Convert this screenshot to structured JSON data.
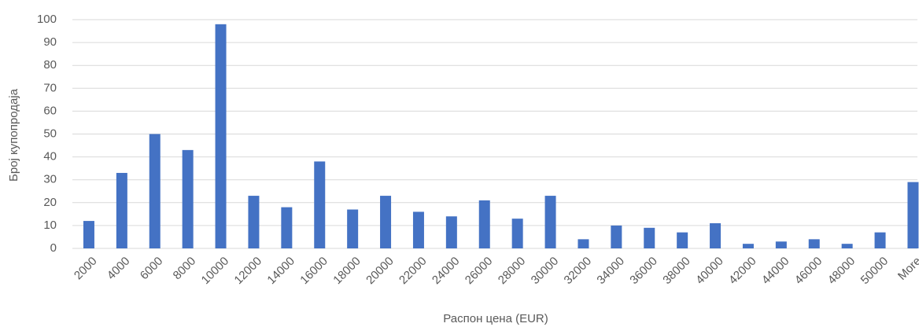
{
  "chart_data": {
    "type": "bar",
    "x_label": "Распон цена (EUR)",
    "y_label": "Број купопродаја",
    "categories": [
      "2000",
      "4000",
      "6000",
      "8000",
      "10000",
      "12000",
      "14000",
      "16000",
      "18000",
      "20000",
      "22000",
      "24000",
      "26000",
      "28000",
      "30000",
      "32000",
      "34000",
      "36000",
      "38000",
      "40000",
      "42000",
      "44000",
      "46000",
      "48000",
      "50000",
      "More"
    ],
    "values": [
      12,
      33,
      50,
      43,
      98,
      23,
      18,
      38,
      17,
      23,
      16,
      14,
      21,
      13,
      23,
      4,
      10,
      9,
      7,
      11,
      2,
      3,
      4,
      2,
      7,
      29
    ],
    "color": "#4472c4",
    "ylim": [
      0,
      100
    ],
    "yticks": [
      0,
      10,
      20,
      30,
      40,
      50,
      60,
      70,
      80,
      90,
      100
    ],
    "grid": true
  }
}
